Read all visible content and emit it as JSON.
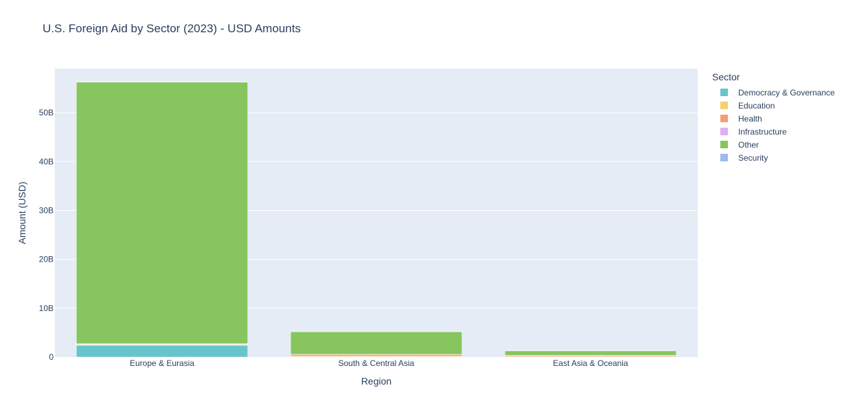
{
  "chart_data": {
    "type": "bar",
    "barmode": "stack",
    "title": "U.S. Foreign Aid by Sector (2023) - USD Amounts",
    "xlabel": "Region",
    "ylabel": "Amount (USD)",
    "ylim": [
      0,
      59000000000
    ],
    "yticks": [
      0,
      10000000000,
      20000000000,
      30000000000,
      40000000000,
      50000000000
    ],
    "ytick_labels": [
      "0",
      "10B",
      "20B",
      "30B",
      "40B",
      "50B"
    ],
    "categories": [
      "Europe & Eurasia",
      "South & Central Asia",
      "East Asia & Oceania"
    ],
    "legend_title": "Sector",
    "legend_position": "right",
    "series": [
      {
        "name": "Democracy & Governance",
        "color": "#66C5CC",
        "values": [
          2400000000,
          50000000,
          40000000
        ]
      },
      {
        "name": "Education",
        "color": "#F6CF71",
        "values": [
          150000000,
          120000000,
          60000000
        ]
      },
      {
        "name": "Health",
        "color": "#F89C74",
        "values": [
          100000000,
          350000000,
          250000000
        ]
      },
      {
        "name": "Infrastructure",
        "color": "#DCB0F2",
        "values": [
          80000000,
          50000000,
          30000000
        ]
      },
      {
        "name": "Other",
        "color": "#87C55F",
        "values": [
          53500000000,
          4600000000,
          900000000
        ]
      },
      {
        "name": "Security",
        "color": "#9EB9F3",
        "values": [
          20000000,
          30000000,
          20000000
        ]
      }
    ]
  }
}
